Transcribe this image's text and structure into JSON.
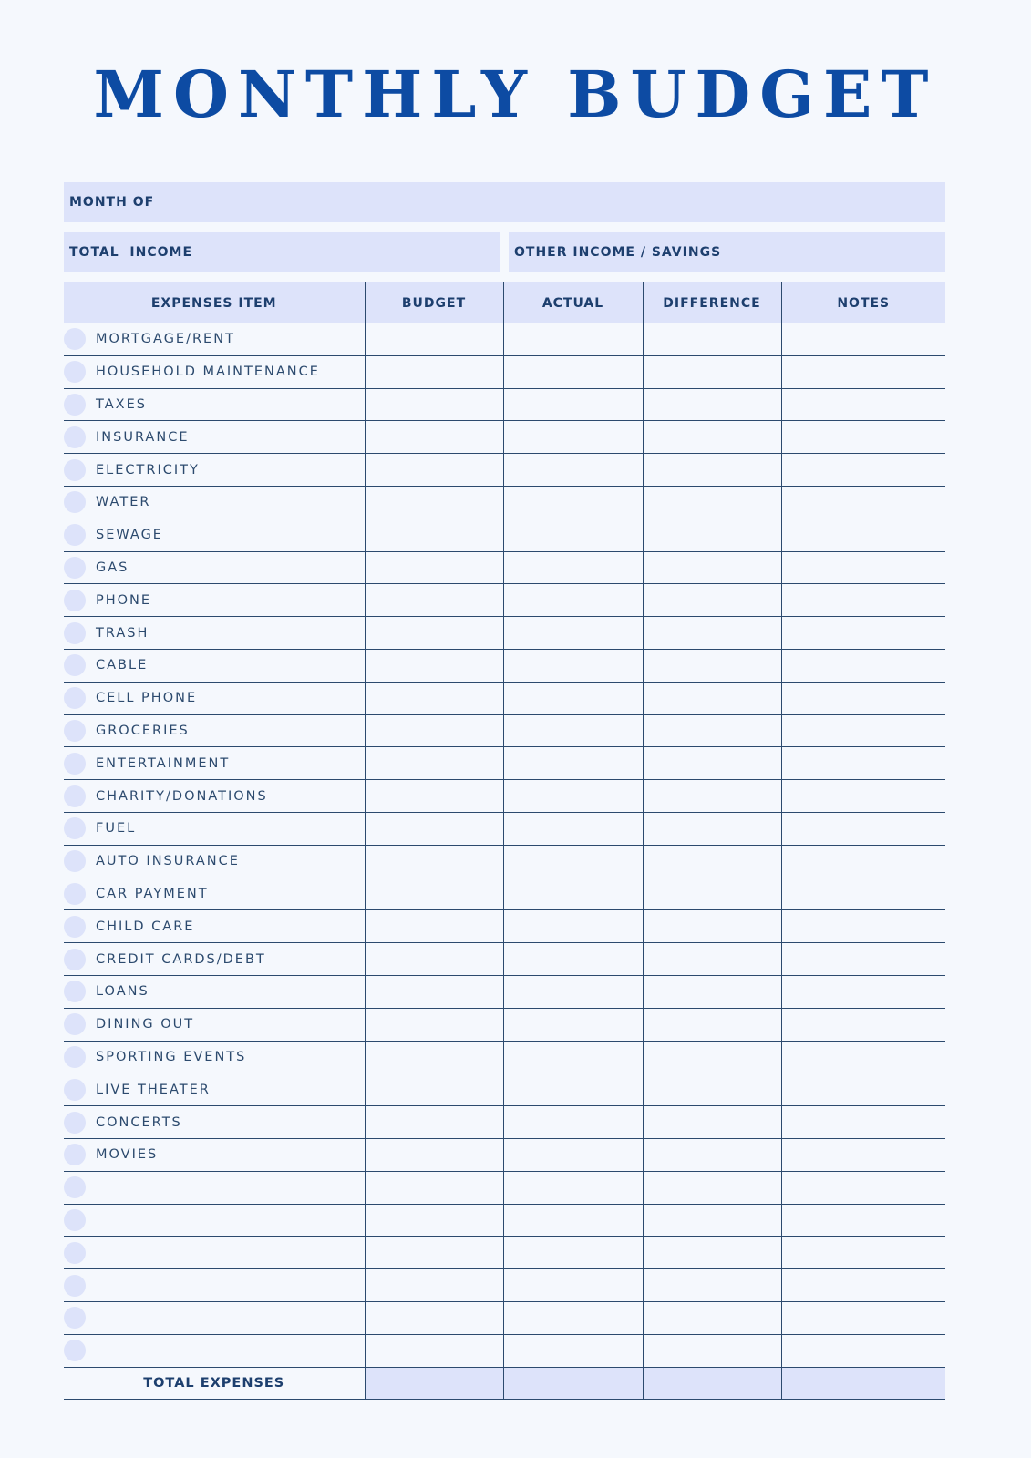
{
  "title": "MONTHLY BUDGET",
  "month_label": "MONTH OF",
  "total_income_label": "TOTAL  INCOME",
  "other_income_label": "OTHER INCOME / SAVINGS",
  "columns": [
    "EXPENSES ITEM",
    "BUDGET",
    "ACTUAL",
    "DIFFERENCE",
    "NOTES"
  ],
  "items": [
    "MORTGAGE/RENT",
    "HOUSEHOLD MAINTENANCE",
    "TAXES",
    "INSURANCE",
    "ELECTRICITY",
    "WATER",
    "SEWAGE",
    "GAS",
    "PHONE",
    "TRASH",
    "CABLE",
    "CELL PHONE",
    "GROCERIES",
    "ENTERTAINMENT",
    "CHARITY/DONATIONS",
    "FUEL",
    "AUTO INSURANCE",
    "CAR PAYMENT",
    "CHILD CARE",
    "CREDIT CARDS/DEBT",
    "LOANS",
    "DINING OUT",
    "SPORTING EVENTS",
    "LIVE THEATER",
    "CONCERTS",
    "MOVIES",
    "",
    "",
    "",
    "",
    "",
    ""
  ],
  "total_label": "TOTAL EXPENSES",
  "colors": {
    "title": "#0d4ba3",
    "fill": "#dde3fa",
    "lines": "#2c4a6e",
    "background": "#f5f8fd"
  }
}
